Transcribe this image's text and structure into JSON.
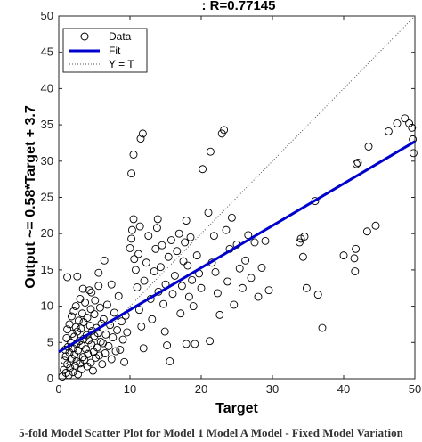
{
  "chart_data": {
    "type": "scatter",
    "title": ": R=0.77145",
    "xlabel": "Target",
    "ylabel": "Output ~= 0.58*Target + 3.7",
    "xlim": [
      0,
      50
    ],
    "ylim": [
      0,
      50
    ],
    "xticks": [
      "0",
      "10",
      "20",
      "30",
      "40",
      "50"
    ],
    "yticks": [
      "0",
      "5",
      "10",
      "15",
      "20",
      "25",
      "30",
      "35",
      "40",
      "45",
      "50"
    ],
    "grid": false,
    "legend": {
      "placement": "top-left",
      "entries": [
        "Data",
        "Fit",
        "Y = T"
      ]
    },
    "fit": {
      "slope": 0.58,
      "intercept": 3.7,
      "color": "#0000cc"
    },
    "identity_line_color": "#555555",
    "marker_color": "#000000",
    "series": [
      {
        "name": "Data",
        "points": [
          [
            0.5,
            0.3
          ],
          [
            0.7,
            1.2
          ],
          [
            0.8,
            2.5
          ],
          [
            0.9,
            4.0
          ],
          [
            1.0,
            0.8
          ],
          [
            1.0,
            3.1
          ],
          [
            1.1,
            5.6
          ],
          [
            1.2,
            6.8
          ],
          [
            1.2,
            2.0
          ],
          [
            1.3,
            4.4
          ],
          [
            1.4,
            0.5
          ],
          [
            1.5,
            3.6
          ],
          [
            1.5,
            7.5
          ],
          [
            1.6,
            1.5
          ],
          [
            1.7,
            5.0
          ],
          [
            1.8,
            8.6
          ],
          [
            1.8,
            2.8
          ],
          [
            1.9,
            6.2
          ],
          [
            2.0,
            0.9
          ],
          [
            2.0,
            4.2
          ],
          [
            2.1,
            9.3
          ],
          [
            2.2,
            3.3
          ],
          [
            2.2,
            5.8
          ],
          [
            2.3,
            1.8
          ],
          [
            2.4,
            7.1
          ],
          [
            2.4,
            10.0
          ],
          [
            2.5,
            2.4
          ],
          [
            2.5,
            4.8
          ],
          [
            2.6,
            6.5
          ],
          [
            2.7,
            0.6
          ],
          [
            2.7,
            3.9
          ],
          [
            2.8,
            8.0
          ],
          [
            2.9,
            5.2
          ],
          [
            3.0,
            2.1
          ],
          [
            3.0,
            11.0
          ],
          [
            3.1,
            6.9
          ],
          [
            3.2,
            4.6
          ],
          [
            3.2,
            1.3
          ],
          [
            3.3,
            9.0
          ],
          [
            3.4,
            3.0
          ],
          [
            3.5,
            5.5
          ],
          [
            3.5,
            7.8
          ],
          [
            3.6,
            2.6
          ],
          [
            3.7,
            10.5
          ],
          [
            3.8,
            4.1
          ],
          [
            3.9,
            6.0
          ],
          [
            4.0,
            1.7
          ],
          [
            4.0,
            8.4
          ],
          [
            4.1,
            3.4
          ],
          [
            4.2,
            5.3
          ],
          [
            4.3,
            12.2
          ],
          [
            4.4,
            7.3
          ],
          [
            4.5,
            2.2
          ],
          [
            4.5,
            9.6
          ],
          [
            4.6,
            4.7
          ],
          [
            4.7,
            6.6
          ],
          [
            4.8,
            1.1
          ],
          [
            4.9,
            3.7
          ],
          [
            5.0,
            8.9
          ],
          [
            5.0,
            5.9
          ],
          [
            5.1,
            10.8
          ],
          [
            5.2,
            2.9
          ],
          [
            5.3,
            7.0
          ],
          [
            5.4,
            4.3
          ],
          [
            5.5,
            6.3
          ],
          [
            5.6,
            12.8
          ],
          [
            5.7,
            3.2
          ],
          [
            5.8,
            9.8
          ],
          [
            5.9,
            5.1
          ],
          [
            6.0,
            7.6
          ],
          [
            6.1,
            2.0
          ],
          [
            6.2,
            4.9
          ],
          [
            6.3,
            8.2
          ],
          [
            6.5,
            3.5
          ],
          [
            6.6,
            6.1
          ],
          [
            6.8,
            10.2
          ],
          [
            7.0,
            4.5
          ],
          [
            7.2,
            7.4
          ],
          [
            7.4,
            2.7
          ],
          [
            7.6,
            5.7
          ],
          [
            7.8,
            9.1
          ],
          [
            8.0,
            3.8
          ],
          [
            8.2,
            6.7
          ],
          [
            8.4,
            11.4
          ],
          [
            8.6,
            4.0
          ],
          [
            8.8,
            7.9
          ],
          [
            9.0,
            5.4
          ],
          [
            9.2,
            2.3
          ],
          [
            9.4,
            8.7
          ],
          [
            9.6,
            6.4
          ],
          [
            1.2,
            14.0
          ],
          [
            2.6,
            14.1
          ],
          [
            3.4,
            12.4
          ],
          [
            5.6,
            14.6
          ],
          [
            6.4,
            16.3
          ],
          [
            4.6,
            11.9
          ],
          [
            7.4,
            13.0
          ],
          [
            10.0,
            18.0
          ],
          [
            10.2,
            19.3
          ],
          [
            10.3,
            20.5
          ],
          [
            10.5,
            22.0
          ],
          [
            10.6,
            16.5
          ],
          [
            10.8,
            15.0
          ],
          [
            11.0,
            12.6
          ],
          [
            11.2,
            17.2
          ],
          [
            11.4,
            21.0
          ],
          [
            10.2,
            28.3
          ],
          [
            10.5,
            30.9
          ],
          [
            11.5,
            33.1
          ],
          [
            11.8,
            33.8
          ],
          [
            11.3,
            9.5
          ],
          [
            11.6,
            7.2
          ],
          [
            11.9,
            4.2
          ],
          [
            12.0,
            13.5
          ],
          [
            12.3,
            16.0
          ],
          [
            12.6,
            19.7
          ],
          [
            12.9,
            11.0
          ],
          [
            13.1,
            8.2
          ],
          [
            13.4,
            14.8
          ],
          [
            13.6,
            17.9
          ],
          [
            13.8,
            20.8
          ],
          [
            13.9,
            22.0
          ],
          [
            14.0,
            12.0
          ],
          [
            14.3,
            15.4
          ],
          [
            14.5,
            18.4
          ],
          [
            14.7,
            10.3
          ],
          [
            14.9,
            6.5
          ],
          [
            15.0,
            13.0
          ],
          [
            15.2,
            4.6
          ],
          [
            15.4,
            16.8
          ],
          [
            15.6,
            2.4
          ],
          [
            15.8,
            19.1
          ],
          [
            16.0,
            11.7
          ],
          [
            16.3,
            14.2
          ],
          [
            16.6,
            17.6
          ],
          [
            16.9,
            20.0
          ],
          [
            17.1,
            9.0
          ],
          [
            17.3,
            12.8
          ],
          [
            17.5,
            16.2
          ],
          [
            17.7,
            18.8
          ],
          [
            17.9,
            21.8
          ],
          [
            18.1,
            15.6
          ],
          [
            18.3,
            11.3
          ],
          [
            18.5,
            19.5
          ],
          [
            18.7,
            13.6
          ],
          [
            18.9,
            10.0
          ],
          [
            19.1,
            4.8
          ],
          [
            19.4,
            17.0
          ],
          [
            19.7,
            14.5
          ],
          [
            20.0,
            12.5
          ],
          [
            20.2,
            28.9
          ],
          [
            21.0,
            22.9
          ],
          [
            21.3,
            31.3
          ],
          [
            21.5,
            16.0
          ],
          [
            21.8,
            19.7
          ],
          [
            22.0,
            14.7
          ],
          [
            22.3,
            11.8
          ],
          [
            22.6,
            8.8
          ],
          [
            22.9,
            33.8
          ],
          [
            23.2,
            34.3
          ],
          [
            23.5,
            20.5
          ],
          [
            23.7,
            13.4
          ],
          [
            24.0,
            17.9
          ],
          [
            24.3,
            22.2
          ],
          [
            24.6,
            10.2
          ],
          [
            25.0,
            18.5
          ],
          [
            25.4,
            15.2
          ],
          [
            25.8,
            12.5
          ],
          [
            26.2,
            16.3
          ],
          [
            26.6,
            19.8
          ],
          [
            27.0,
            13.9
          ],
          [
            27.5,
            18.8
          ],
          [
            28.0,
            11.3
          ],
          [
            28.5,
            15.3
          ],
          [
            29.0,
            19.0
          ],
          [
            29.5,
            12.2
          ],
          [
            21.2,
            5.2
          ],
          [
            17.9,
            4.8
          ],
          [
            33.8,
            18.8
          ],
          [
            34.0,
            19.3
          ],
          [
            34.3,
            16.8
          ],
          [
            34.5,
            19.6
          ],
          [
            34.8,
            12.5
          ],
          [
            36.0,
            24.5
          ],
          [
            36.4,
            11.6
          ],
          [
            37.0,
            7.0
          ],
          [
            40.0,
            17.0
          ],
          [
            41.5,
            16.6
          ],
          [
            41.7,
            17.9
          ],
          [
            41.6,
            14.8
          ],
          [
            41.8,
            29.6
          ],
          [
            42.0,
            29.8
          ],
          [
            43.5,
            32.0
          ],
          [
            43.3,
            20.3
          ],
          [
            44.5,
            21.1
          ],
          [
            46.3,
            34.1
          ],
          [
            47.5,
            35.2
          ],
          [
            48.6,
            35.9
          ],
          [
            49.2,
            35.2
          ],
          [
            49.6,
            34.6
          ],
          [
            49.7,
            33.0
          ],
          [
            49.8,
            31.1
          ]
        ]
      }
    ]
  },
  "caption": "5-fold Model Scatter Plot for Model 1 Model A Model - Fixed Model Variation"
}
